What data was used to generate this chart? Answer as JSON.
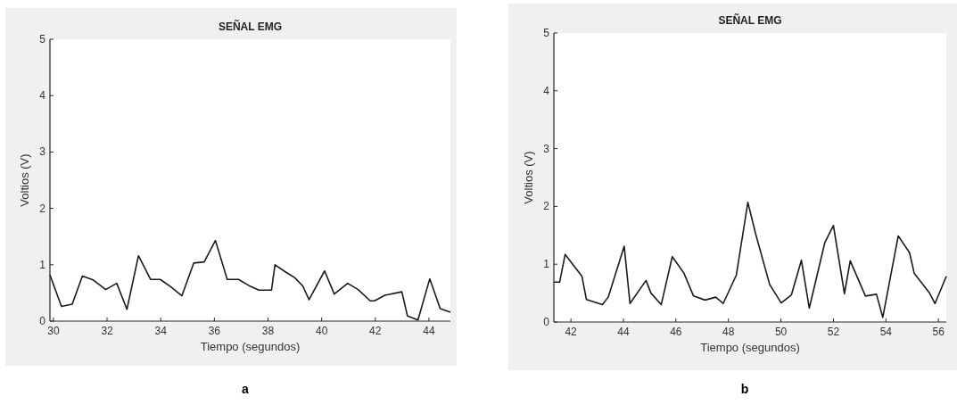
{
  "chart_data": [
    {
      "type": "line",
      "title": "SEÑAL EMG",
      "xlabel": "Tiempo (segundos)",
      "ylabel": "Voltios (V)",
      "annotations": [
        "a"
      ],
      "xlim": [
        29.87,
        44.8
      ],
      "ylim": [
        0,
        5
      ],
      "xticks": [
        30,
        32,
        34,
        36,
        38,
        40,
        42,
        44
      ],
      "yticks": [
        0,
        1,
        2,
        3,
        4,
        5
      ],
      "grid": false,
      "marker": "none",
      "line_style": "solid",
      "series": [
        {
          "color": "#1a1a1a",
          "x": [
            29.87,
            30.3,
            30.7,
            31.08,
            31.48,
            31.95,
            32.36,
            32.74,
            33.17,
            33.62,
            33.98,
            34.37,
            34.79,
            35.23,
            35.62,
            36.04,
            36.48,
            36.9,
            37.29,
            37.66,
            38.13,
            38.26,
            38.66,
            39.0,
            39.3,
            39.53,
            40.11,
            40.47,
            40.97,
            41.36,
            41.81,
            41.97,
            42.36,
            42.99,
            43.2,
            43.59,
            44.03,
            44.42,
            44.8
          ],
          "values": [
            0.82,
            0.26,
            0.3,
            0.8,
            0.73,
            0.56,
            0.67,
            0.21,
            1.16,
            0.74,
            0.74,
            0.61,
            0.45,
            1.03,
            1.05,
            1.43,
            0.74,
            0.74,
            0.63,
            0.55,
            0.55,
            1.0,
            0.87,
            0.77,
            0.62,
            0.38,
            0.89,
            0.48,
            0.67,
            0.56,
            0.36,
            0.36,
            0.46,
            0.52,
            0.09,
            0.02,
            0.75,
            0.22,
            0.16
          ]
        }
      ]
    },
    {
      "type": "line",
      "title": "SEÑAL EMG",
      "xlabel": "Tiempo (segundos)",
      "ylabel": "Voltios (V)",
      "annotations": [
        "b"
      ],
      "xlim": [
        41.35,
        56.3
      ],
      "ylim": [
        0,
        5
      ],
      "xticks": [
        42,
        44,
        46,
        48,
        50,
        52,
        54,
        56
      ],
      "yticks": [
        0,
        1,
        2,
        3,
        4,
        5
      ],
      "grid": false,
      "marker": "none",
      "line_style": "solid",
      "series": [
        {
          "color": "#1a1a1a",
          "x": [
            41.35,
            41.57,
            41.78,
            42.42,
            42.59,
            43.2,
            43.42,
            44.03,
            44.25,
            44.86,
            45.05,
            45.44,
            45.86,
            46.3,
            46.67,
            47.11,
            47.52,
            47.8,
            48.3,
            48.74,
            49.04,
            49.57,
            50.01,
            50.4,
            50.78,
            51.08,
            51.67,
            52.0,
            52.42,
            52.64,
            53.22,
            53.64,
            53.88,
            54.47,
            54.9,
            55.08,
            55.65,
            55.87,
            56.3
          ],
          "values": [
            0.69,
            0.69,
            1.17,
            0.79,
            0.39,
            0.3,
            0.43,
            1.31,
            0.32,
            0.72,
            0.5,
            0.3,
            1.13,
            0.85,
            0.45,
            0.38,
            0.43,
            0.32,
            0.81,
            2.07,
            1.52,
            0.65,
            0.33,
            0.47,
            1.07,
            0.24,
            1.37,
            1.67,
            0.49,
            1.06,
            0.45,
            0.48,
            0.08,
            1.49,
            1.2,
            0.84,
            0.51,
            0.32,
            0.79
          ]
        }
      ]
    }
  ]
}
